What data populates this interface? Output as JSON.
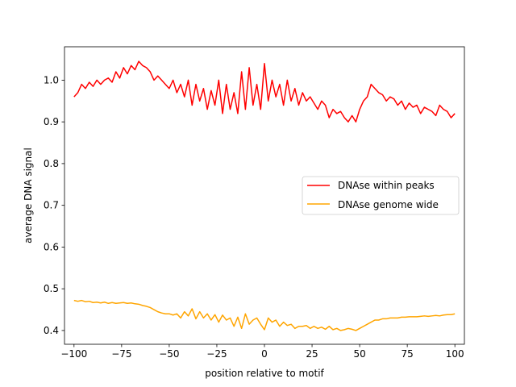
{
  "chart_data": {
    "type": "line",
    "title": "",
    "xlabel": "position relative to motif",
    "ylabel": "average DNA signal",
    "xlim": [
      -105,
      105
    ],
    "ylim": [
      0.367,
      1.08
    ],
    "xticks": [
      -100,
      -75,
      -50,
      -25,
      0,
      25,
      50,
      75,
      100
    ],
    "xtick_labels": [
      "−100",
      "−75",
      "−50",
      "−25",
      "0",
      "25",
      "50",
      "75",
      "100"
    ],
    "yticks": [
      0.4,
      0.5,
      0.6,
      0.7,
      0.8,
      0.9,
      1.0
    ],
    "ytick_labels": [
      "0.4",
      "0.5",
      "0.6",
      "0.7",
      "0.8",
      "0.9",
      "1.0"
    ],
    "grid": false,
    "legend": "center-right",
    "series": [
      {
        "name": "DNAse within peaks",
        "color": "#ff0000",
        "x": [
          -100,
          -98,
          -96,
          -94,
          -92,
          -90,
          -88,
          -86,
          -84,
          -82,
          -80,
          -78,
          -76,
          -74,
          -72,
          -70,
          -68,
          -66,
          -64,
          -62,
          -60,
          -58,
          -56,
          -54,
          -52,
          -50,
          -48,
          -46,
          -44,
          -42,
          -40,
          -38,
          -36,
          -34,
          -32,
          -30,
          -28,
          -26,
          -24,
          -22,
          -20,
          -18,
          -16,
          -14,
          -12,
          -10,
          -8,
          -6,
          -4,
          -2,
          0,
          2,
          4,
          6,
          8,
          10,
          12,
          14,
          16,
          18,
          20,
          22,
          24,
          26,
          28,
          30,
          32,
          34,
          36,
          38,
          40,
          42,
          44,
          46,
          48,
          50,
          52,
          54,
          56,
          58,
          60,
          62,
          64,
          66,
          68,
          70,
          72,
          74,
          76,
          78,
          80,
          82,
          84,
          86,
          88,
          90,
          92,
          94,
          96,
          98,
          100
        ],
        "values": [
          0.96,
          0.97,
          0.99,
          0.98,
          0.995,
          0.985,
          1.0,
          0.99,
          1.0,
          1.005,
          0.995,
          1.02,
          1.005,
          1.03,
          1.015,
          1.035,
          1.025,
          1.045,
          1.035,
          1.03,
          1.02,
          1.0,
          1.01,
          1.0,
          0.99,
          0.98,
          1.0,
          0.97,
          0.99,
          0.96,
          1.0,
          0.94,
          0.99,
          0.95,
          0.98,
          0.93,
          0.975,
          0.94,
          1.0,
          0.92,
          0.99,
          0.93,
          0.97,
          0.92,
          1.02,
          0.93,
          1.03,
          0.94,
          0.99,
          0.93,
          1.04,
          0.95,
          1.0,
          0.96,
          0.99,
          0.94,
          1.0,
          0.95,
          0.98,
          0.94,
          0.97,
          0.95,
          0.96,
          0.945,
          0.93,
          0.95,
          0.94,
          0.91,
          0.93,
          0.92,
          0.925,
          0.91,
          0.9,
          0.915,
          0.9,
          0.93,
          0.95,
          0.96,
          0.99,
          0.98,
          0.97,
          0.965,
          0.95,
          0.96,
          0.955,
          0.94,
          0.95,
          0.93,
          0.945,
          0.935,
          0.94,
          0.92,
          0.935,
          0.93,
          0.925,
          0.915,
          0.94,
          0.93,
          0.925,
          0.91,
          0.92
        ]
      },
      {
        "name": "DNAse genome wide",
        "color": "#ffa500",
        "x": [
          -100,
          -98,
          -96,
          -94,
          -92,
          -90,
          -88,
          -86,
          -84,
          -82,
          -80,
          -78,
          -76,
          -74,
          -72,
          -70,
          -68,
          -66,
          -64,
          -62,
          -60,
          -58,
          -56,
          -54,
          -52,
          -50,
          -48,
          -46,
          -44,
          -42,
          -40,
          -38,
          -36,
          -34,
          -32,
          -30,
          -28,
          -26,
          -24,
          -22,
          -20,
          -18,
          -16,
          -14,
          -12,
          -10,
          -8,
          -6,
          -4,
          -2,
          0,
          2,
          4,
          6,
          8,
          10,
          12,
          14,
          16,
          18,
          20,
          22,
          24,
          26,
          28,
          30,
          32,
          34,
          36,
          38,
          40,
          42,
          44,
          46,
          48,
          50,
          52,
          54,
          56,
          58,
          60,
          62,
          64,
          66,
          68,
          70,
          72,
          74,
          76,
          78,
          80,
          82,
          84,
          86,
          88,
          90,
          92,
          94,
          96,
          98,
          100
        ],
        "values": [
          0.472,
          0.47,
          0.472,
          0.469,
          0.47,
          0.467,
          0.468,
          0.466,
          0.468,
          0.465,
          0.467,
          0.465,
          0.466,
          0.467,
          0.465,
          0.466,
          0.464,
          0.463,
          0.46,
          0.458,
          0.455,
          0.45,
          0.445,
          0.442,
          0.44,
          0.44,
          0.437,
          0.44,
          0.43,
          0.445,
          0.435,
          0.452,
          0.428,
          0.445,
          0.43,
          0.44,
          0.425,
          0.438,
          0.42,
          0.437,
          0.425,
          0.43,
          0.41,
          0.432,
          0.405,
          0.44,
          0.415,
          0.425,
          0.43,
          0.415,
          0.402,
          0.43,
          0.42,
          0.425,
          0.41,
          0.42,
          0.412,
          0.415,
          0.405,
          0.41,
          0.41,
          0.412,
          0.405,
          0.41,
          0.405,
          0.408,
          0.403,
          0.41,
          0.402,
          0.405,
          0.4,
          0.402,
          0.405,
          0.403,
          0.4,
          0.405,
          0.41,
          0.415,
          0.42,
          0.425,
          0.425,
          0.428,
          0.428,
          0.43,
          0.43,
          0.43,
          0.432,
          0.432,
          0.433,
          0.433,
          0.433,
          0.434,
          0.435,
          0.434,
          0.435,
          0.436,
          0.435,
          0.437,
          0.438,
          0.438,
          0.44
        ]
      }
    ]
  }
}
